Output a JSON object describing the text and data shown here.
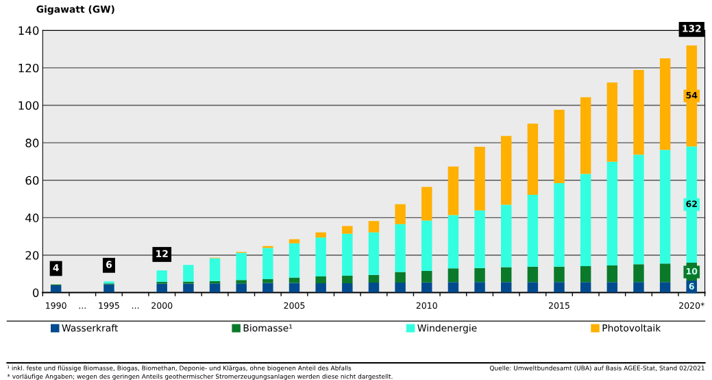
{
  "chart_data": {
    "type": "bar",
    "stacked": true,
    "ylabel": "Gigawatt (GW)",
    "categories": [
      "1990",
      "...",
      "1995",
      "...",
      "2000",
      null,
      null,
      null,
      null,
      "2005",
      null,
      null,
      null,
      null,
      "2010",
      null,
      null,
      null,
      null,
      "2015",
      null,
      null,
      null,
      null,
      "2020*"
    ],
    "series": [
      {
        "name": "Wasserkraft",
        "color": "#004b8d",
        "values": [
          3.9,
          null,
          4.4,
          null,
          4.8,
          4.8,
          4.9,
          4.9,
          5.2,
          5.2,
          5.0,
          5.0,
          5.3,
          5.3,
          5.4,
          5.6,
          5.6,
          5.6,
          5.6,
          5.6,
          5.6,
          5.6,
          5.6,
          5.6,
          6
        ],
        "value_labels": [
          null,
          null,
          null,
          null,
          null,
          null,
          null,
          null,
          null,
          null,
          null,
          null,
          null,
          null,
          null,
          null,
          null,
          null,
          null,
          null,
          null,
          null,
          null,
          null,
          "6"
        ]
      },
      {
        "name": "Biomasse¹",
        "color": "#0a7a2a",
        "values": [
          0.4,
          null,
          0.5,
          null,
          0.9,
          1.1,
          1.3,
          1.8,
          2.0,
          2.8,
          3.6,
          4.0,
          4.2,
          5.7,
          6.2,
          7.3,
          7.5,
          8.0,
          8.3,
          8.3,
          8.5,
          8.9,
          9.5,
          9.9,
          10
        ],
        "value_labels": [
          null,
          null,
          null,
          null,
          null,
          null,
          null,
          null,
          null,
          null,
          null,
          null,
          null,
          null,
          null,
          null,
          null,
          null,
          null,
          null,
          null,
          null,
          null,
          null,
          "10"
        ]
      },
      {
        "name": "Windenergie",
        "color": "#33ffe0",
        "values": [
          null,
          null,
          1.1,
          null,
          6.1,
          8.9,
          12.1,
          14.6,
          16.6,
          18.3,
          20.8,
          22.4,
          22.7,
          25.6,
          26.9,
          28.5,
          30.8,
          33.3,
          38.3,
          44.5,
          49.3,
          55.4,
          58.5,
          60.7,
          62
        ],
        "value_labels": [
          null,
          null,
          null,
          null,
          null,
          null,
          null,
          null,
          null,
          null,
          null,
          null,
          null,
          null,
          null,
          null,
          null,
          null,
          null,
          null,
          null,
          null,
          null,
          null,
          "62"
        ]
      },
      {
        "name": "Photovoltaik",
        "color": "#ffb000",
        "values": [
          0,
          null,
          0,
          null,
          null,
          null,
          0.3,
          0.4,
          1.0,
          2.2,
          2.8,
          4.2,
          6.0,
          10.6,
          17.9,
          25.9,
          34.0,
          36.7,
          38.0,
          39.2,
          40.9,
          42.3,
          45.3,
          48.9,
          54
        ],
        "value_labels": [
          null,
          null,
          null,
          null,
          null,
          null,
          null,
          null,
          null,
          null,
          null,
          null,
          null,
          null,
          null,
          null,
          null,
          null,
          null,
          null,
          null,
          null,
          null,
          null,
          "54"
        ]
      }
    ],
    "totals": [
      "4",
      null,
      "6",
      null,
      "12",
      null,
      null,
      null,
      null,
      null,
      null,
      null,
      null,
      null,
      null,
      null,
      null,
      null,
      null,
      null,
      null,
      null,
      null,
      null,
      "132"
    ],
    "ylim": [
      0,
      140
    ],
    "yticks": [
      0,
      20,
      40,
      60,
      80,
      100,
      120,
      140
    ],
    "grid": "y",
    "legend": "bottom",
    "annotations": [
      "¹ inkl. feste und flüssige Biomasse, Biogas, Biomethan, Deponie- und Klärgas, ohne biogenen Anteil des Abfalls",
      "* vorläufige Angaben; wegen des geringen Anteils geothermischer Stromerzeugungsanlagen werden diese nicht dargestellt.",
      "Quelle: Umweltbundesamt (UBA) auf Basis AGEE-Stat, Stand 02/2021"
    ]
  }
}
